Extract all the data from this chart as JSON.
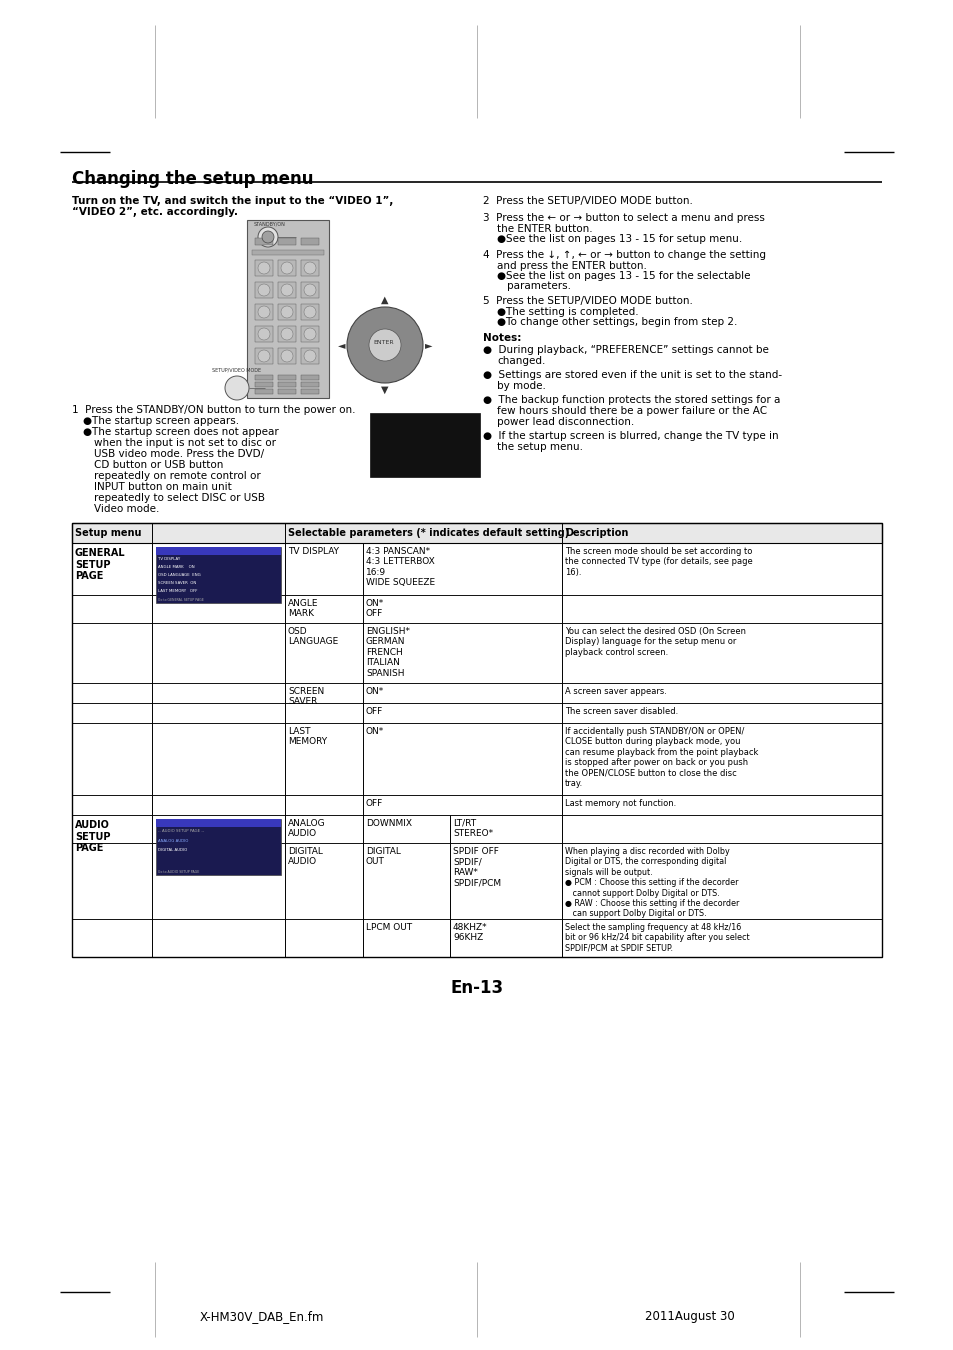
{
  "page_bg": "#ffffff",
  "title": "Changing the setup menu",
  "footer_left": "X-HM30V_DAB_En.fm",
  "footer_right": "2011August 30",
  "page_number": "En-13"
}
